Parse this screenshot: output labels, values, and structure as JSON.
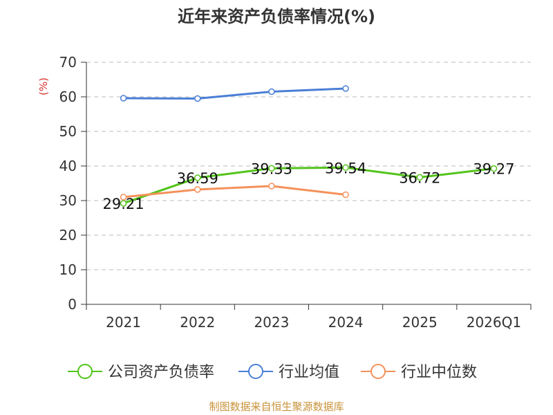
{
  "chart_data": {
    "type": "line",
    "title": "近年来资产负债率情况(%)",
    "ylabel": "(%)",
    "xlabel": "",
    "ylim": [
      0,
      70
    ],
    "yticks": [
      0,
      10,
      20,
      30,
      40,
      50,
      60,
      70
    ],
    "categories": [
      "2021",
      "2022",
      "2023",
      "2024",
      "2025",
      "2026Q1"
    ],
    "grid": true,
    "legend_position": "bottom",
    "series": [
      {
        "name": "公司资产负债率",
        "color": "#52c41a",
        "values": [
          29.21,
          36.59,
          39.33,
          39.54,
          36.72,
          39.27
        ],
        "labels": [
          "29.21",
          "36.59",
          "39.33",
          "39.54",
          "36.72",
          "39.27"
        ]
      },
      {
        "name": "行业均值",
        "color": "#4a7fd6",
        "values": [
          59.6,
          59.5,
          61.5,
          62.4,
          null,
          null
        ]
      },
      {
        "name": "行业中位数",
        "color": "#f4915a",
        "values": [
          31.0,
          33.2,
          34.2,
          31.7,
          null,
          null
        ]
      }
    ]
  },
  "colors": {
    "axis": "#333333",
    "grid": "#bbbbbb",
    "unit": "#d9302c",
    "source": "#c8923a"
  },
  "source_text": "制图数据来自恒生聚源数据库"
}
